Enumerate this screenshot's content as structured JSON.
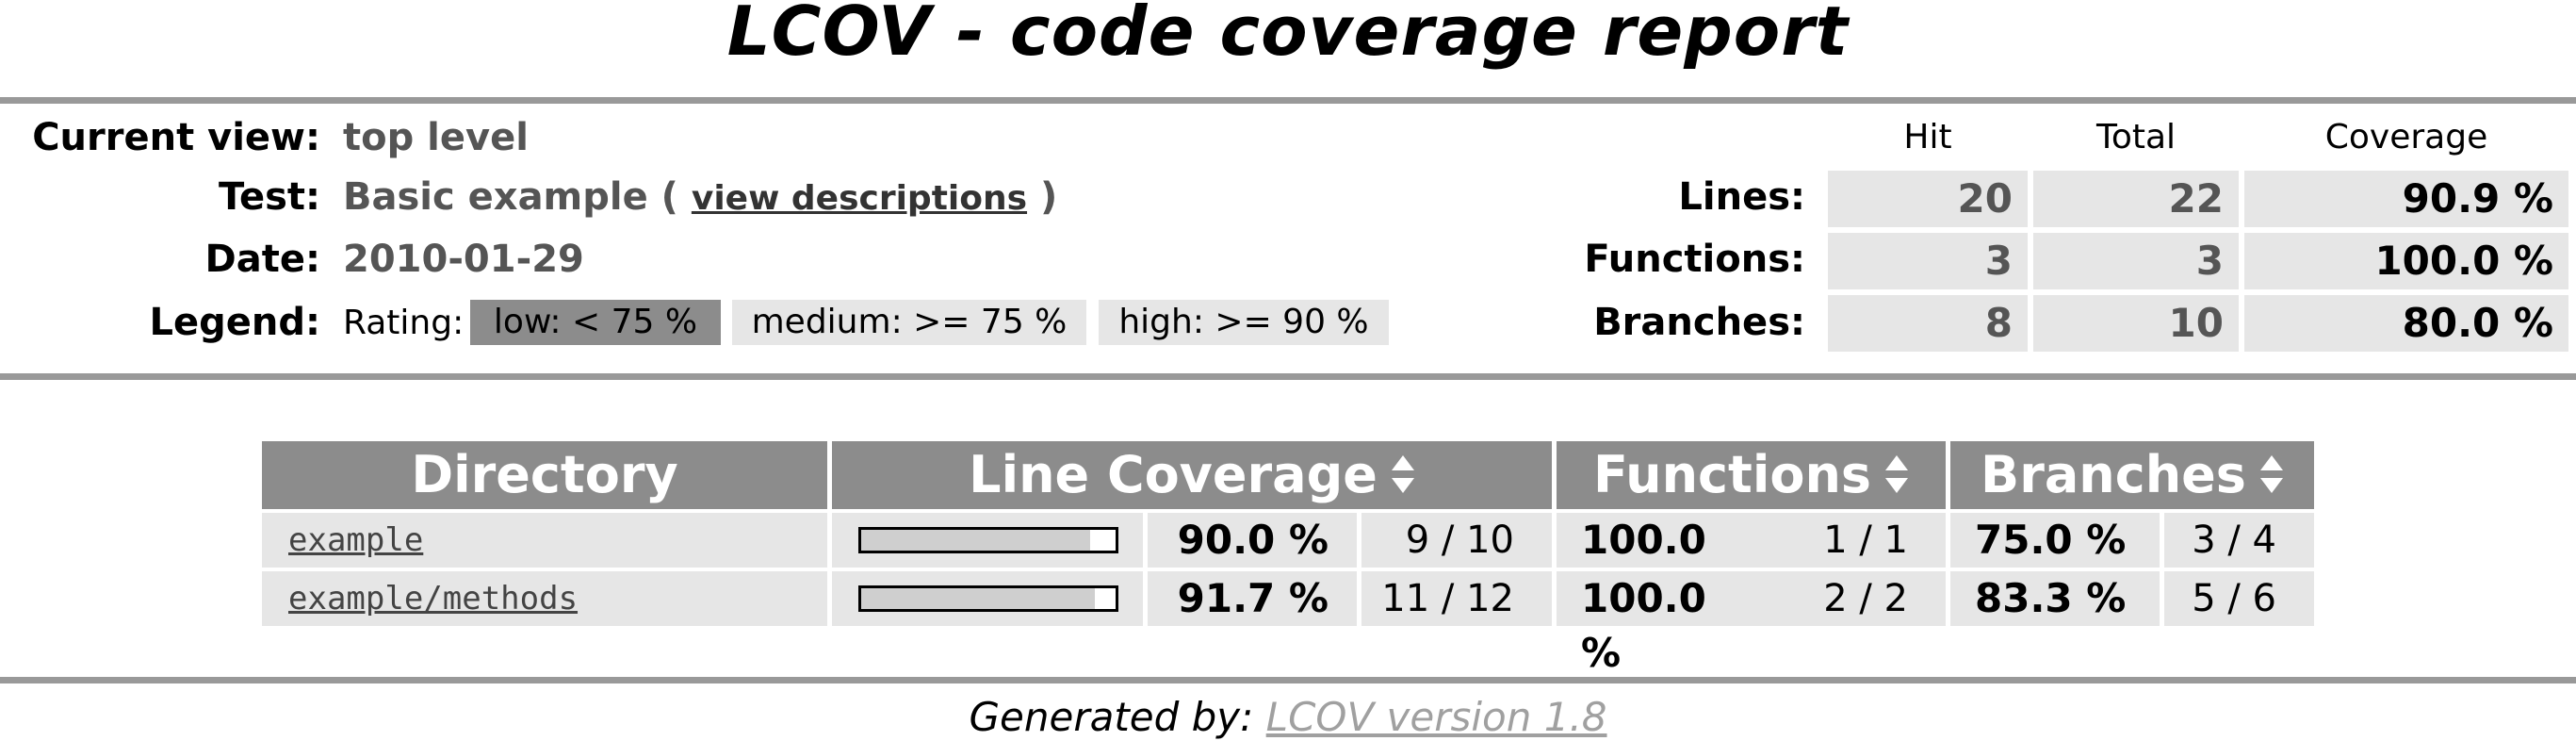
{
  "title": "LCOV - code coverage report",
  "info": {
    "current_view_label": "Current view:",
    "current_view_value": "top level",
    "test_label": "Test:",
    "test_value": "Basic example",
    "test_paren_open": "(",
    "test_link": "view descriptions",
    "test_paren_close": ")",
    "date_label": "Date:",
    "date_value": "2010-01-29",
    "legend_label": "Legend:",
    "rating_label": "Rating:",
    "legend_low": "low: < 75 %",
    "legend_medium": "medium: >= 75 %",
    "legend_high": "high: >= 90 %"
  },
  "summary": {
    "col_hit": "Hit",
    "col_total": "Total",
    "col_coverage": "Coverage",
    "rows": [
      {
        "label": "Lines:",
        "hit": "20",
        "total": "22",
        "coverage": "90.9 %"
      },
      {
        "label": "Functions:",
        "hit": "3",
        "total": "3",
        "coverage": "100.0 %"
      },
      {
        "label": "Branches:",
        "hit": "8",
        "total": "10",
        "coverage": "80.0 %"
      }
    ]
  },
  "table": {
    "headers": {
      "directory": "Directory",
      "line_coverage": "Line Coverage",
      "functions": "Functions",
      "branches": "Branches"
    },
    "rows": [
      {
        "dir": "example",
        "line_fraction": 0.9,
        "line_pct": "90.0 %",
        "line_count": "9 / 10",
        "func_pct": "100.0 %",
        "func_count": "1 / 1",
        "branch_pct": "75.0 %",
        "branch_count": "3 / 4"
      },
      {
        "dir": "example/methods",
        "line_fraction": 0.917,
        "line_pct": "91.7 %",
        "line_count": "11 / 12",
        "func_pct": "100.0 %",
        "func_count": "2 / 2",
        "branch_pct": "83.3 %",
        "branch_count": "5 / 6"
      }
    ]
  },
  "footer": {
    "prefix": "Generated by:",
    "link": "LCOV version 1.8"
  },
  "colors": {
    "rule": "#999999",
    "header_bg": "#8c8c8c",
    "cell_bg": "#e6e6e6",
    "legend_low_bg": "#8c8c8c",
    "legend_med_bg": "#e6e6e6",
    "legend_high_bg": "#e6e6e6"
  }
}
